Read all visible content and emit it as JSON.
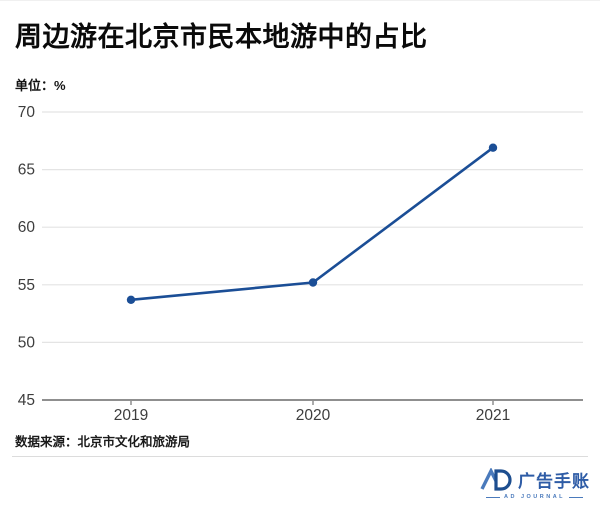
{
  "page": {
    "title": "周边游在北京市民本地游中的占比",
    "unit_label": "单位：%",
    "source_label": "数据来源：北京市文化和旅游局"
  },
  "chart_data": {
    "type": "line",
    "title": "周边游在北京市民本地游中的占比",
    "unit": "%",
    "categories": [
      "2019",
      "2020",
      "2021"
    ],
    "values": [
      53.7,
      55.2,
      66.9
    ],
    "ylim": [
      45,
      70
    ],
    "yticks": [
      45,
      50,
      55,
      60,
      65,
      70
    ],
    "grid": true,
    "legend": "none",
    "line_color": "#1b4e96",
    "marker_color": "#1b4e96",
    "gridline_color": "#e4e4e4",
    "axis_color": "#8f8f8f",
    "tick_label_color": "#3d3d3d",
    "source": "数据来源：北京市文化和旅游局"
  },
  "footer": {
    "logo": {
      "monogram": "AD",
      "brand_name": "广告手账",
      "subtitle": "AD JOURNAL",
      "color_primary": "#2e5ca6",
      "color_dark": "#1d4e8f",
      "color_light": "#4a7abc"
    }
  }
}
